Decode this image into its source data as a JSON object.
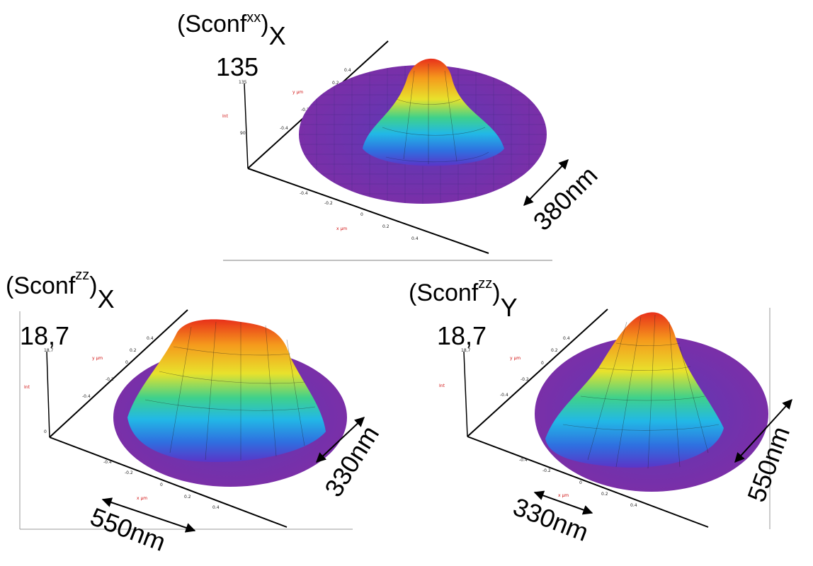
{
  "colors": {
    "base": "#7a2fa8",
    "ramp": [
      "#5a35c8",
      "#2f6fe0",
      "#22b8e6",
      "#3fd18b",
      "#e8e22c",
      "#f59a1c",
      "#e8301a"
    ]
  },
  "panels": [
    {
      "label_main": "(Sconf",
      "label_sup": "xx",
      "label_close": ")",
      "label_sub": "X",
      "zmax_label": "135",
      "zaxis_ticks": [
        "135",
        "90"
      ],
      "zaxis_name": "Int",
      "yaxis_name": "y µm",
      "xaxis_name": "x µm",
      "yaxis_ticks": [
        "0.4",
        "0.2",
        "0",
        "-0.2",
        "-0.4"
      ],
      "xaxis_ticks": [
        "-0.4",
        "-0.2",
        "0",
        "0.2",
        "0.4"
      ],
      "dims": [
        "380nm"
      ]
    },
    {
      "label_main": "(Sconf",
      "label_sup": "zz",
      "label_close": ")",
      "label_sub": "X",
      "zmax_label": "18,7",
      "zaxis_ticks": [
        "18,7",
        "0"
      ],
      "zaxis_name": "Int",
      "yaxis_name": "y µm",
      "xaxis_name": "x µm",
      "yaxis_ticks": [
        "0.4",
        "0.2",
        "0",
        "-0.2",
        "-0.4"
      ],
      "xaxis_ticks": [
        "-0.4",
        "-0.2",
        "0",
        "0.2",
        "0.4"
      ],
      "dims": [
        "330nm",
        "550nm"
      ]
    },
    {
      "label_main": "(Sconf",
      "label_sup": "zz",
      "label_close": ")",
      "label_sub": "Y",
      "zmax_label": "18,7",
      "zaxis_ticks": [
        "18,7"
      ],
      "zaxis_name": "Int",
      "yaxis_name": "y µm",
      "xaxis_name": "x µm",
      "yaxis_ticks": [
        "0.4",
        "0.2",
        "0",
        "-0.2",
        "-0.4"
      ],
      "xaxis_ticks": [
        "-0.4",
        "-0.2",
        "0",
        "0.2",
        "0.4"
      ],
      "dims": [
        "550nm",
        "330nm"
      ]
    }
  ]
}
